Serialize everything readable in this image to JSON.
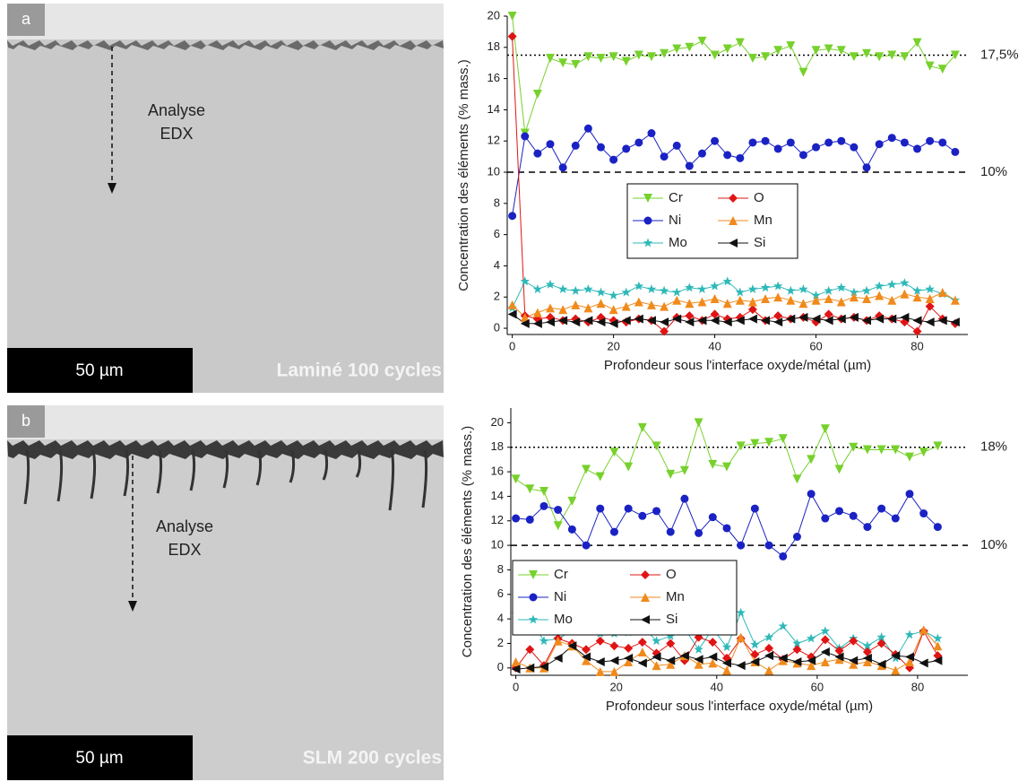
{
  "panels": [
    {
      "label": "a",
      "annotation": [
        "Analyse",
        "EDX"
      ],
      "scale": "50 µm",
      "caption": "Laminé 100 cycles"
    },
    {
      "label": "b",
      "annotation": [
        "Analyse",
        "EDX"
      ],
      "scale": "50 µm",
      "caption": "SLM 200 cycles"
    }
  ],
  "chart_data": [
    {
      "type": "line",
      "xlabel": "Profondeur sous l'interface oxyde/métal (µm)",
      "ylabel": "Concentration des éléments (% mass.)",
      "xlim": [
        -1,
        90
      ],
      "ylim": [
        -0.4,
        20
      ],
      "xticks": [
        0,
        20,
        40,
        60,
        80
      ],
      "yticks": [
        0,
        2,
        4,
        6,
        8,
        10,
        12,
        14,
        16,
        18,
        20
      ],
      "legend": "center",
      "reference_lines": [
        {
          "value": 17.5,
          "label": "17,5%",
          "style": "dotted"
        },
        {
          "value": 10,
          "label": "10%",
          "style": "dashed"
        }
      ],
      "x": [
        0,
        2.5,
        5,
        7.5,
        10,
        12.5,
        15,
        17.5,
        20,
        22.5,
        25,
        27.5,
        30,
        32.5,
        35,
        37.5,
        40,
        42.5,
        45,
        47.5,
        50,
        52.5,
        55,
        57.5,
        60,
        62.5,
        65,
        67.5,
        70,
        72.5,
        75,
        77.5,
        80,
        82.5,
        85,
        87.5
      ],
      "series": [
        {
          "name": "Cr",
          "color": "#77d12c",
          "marker": "tri-down",
          "values": [
            20,
            12.5,
            15,
            17.3,
            17,
            16.9,
            17.4,
            17.3,
            17.4,
            17.1,
            17.5,
            17.4,
            17.6,
            17.9,
            18,
            18.4,
            17.5,
            17.9,
            18.3,
            17.3,
            17.4,
            17.8,
            18.1,
            16.4,
            17.8,
            17.9,
            17.8,
            17.4,
            17.6,
            17.4,
            17.5,
            17.4,
            18.3,
            16.8,
            16.6,
            17.5
          ]
        },
        {
          "name": "Ni",
          "color": "#1a22c4",
          "marker": "circle",
          "values": [
            7.2,
            12.3,
            11.2,
            11.8,
            10.3,
            11.7,
            12.8,
            11.6,
            10.8,
            11.5,
            11.9,
            12.5,
            11,
            11.7,
            10.4,
            11.2,
            12,
            11.1,
            10.9,
            11.9,
            12,
            11.5,
            11.9,
            11.1,
            11.6,
            11.9,
            12,
            11.6,
            10.3,
            11.8,
            12.2,
            11.9,
            11.5,
            12,
            11.9,
            11.3
          ]
        },
        {
          "name": "Mo",
          "color": "#2fb8b8",
          "marker": "star",
          "values": [
            1.3,
            3,
            2.5,
            2.8,
            2.5,
            2.4,
            2.5,
            2.3,
            2.1,
            2.3,
            2.7,
            2.5,
            2.4,
            2.3,
            2.6,
            2.5,
            2.7,
            3,
            2.3,
            2.5,
            2.6,
            2.7,
            2.4,
            2.5,
            2.1,
            2.4,
            2.6,
            2.3,
            2.4,
            2.7,
            2.8,
            2.9,
            2.4,
            2.5,
            2.2,
            1.8
          ]
        },
        {
          "name": "O",
          "color": "#e01414",
          "marker": "diamond",
          "values": [
            18.7,
            0.8,
            0.6,
            0.7,
            0.5,
            0.6,
            0.4,
            0.7,
            0.5,
            0.4,
            0.6,
            0.5,
            -0.2,
            0.7,
            0.8,
            0.5,
            0.9,
            0.6,
            0.7,
            1.2,
            0.5,
            0.8,
            0.6,
            0.7,
            0.4,
            0.9,
            0.6,
            0.7,
            0.5,
            0.8,
            0.6,
            0.4,
            -0.2,
            1.4,
            0.6,
            0.3
          ]
        },
        {
          "name": "Mn",
          "color": "#f08a1c",
          "marker": "tri-up",
          "values": [
            1.5,
            0.7,
            1,
            1.3,
            1.2,
            1.5,
            1.3,
            1.6,
            1.2,
            1.4,
            1.7,
            1.5,
            1.4,
            1.8,
            1.6,
            1.7,
            1.9,
            1.6,
            1.8,
            1.7,
            1.9,
            2,
            1.8,
            1.6,
            1.8,
            1.9,
            1.7,
            2,
            1.9,
            2.1,
            1.8,
            2.2,
            2,
            1.9,
            2.3,
            1.8
          ]
        },
        {
          "name": "Si",
          "color": "#111111",
          "marker": "tri-left",
          "values": [
            0.9,
            0.3,
            0.3,
            0.4,
            0.5,
            0.4,
            0.5,
            0.4,
            0.3,
            0.5,
            0.6,
            0.5,
            0.4,
            0.6,
            0.4,
            0.5,
            0.5,
            0.4,
            0.5,
            0.6,
            0.5,
            0.4,
            0.6,
            0.7,
            0.6,
            0.5,
            0.6,
            0.7,
            0.5,
            0.6,
            0.6,
            0.7,
            0.5,
            0.4,
            0.5,
            0.4
          ]
        }
      ]
    },
    {
      "type": "line",
      "xlabel": "Profondeur sous l'interface oxyde/métal (µm)",
      "ylabel": "Concentration des éléments (% mass.)",
      "xlim": [
        -1,
        90
      ],
      "ylim": [
        -0.6,
        21.2
      ],
      "xticks": [
        0,
        20,
        40,
        60,
        80
      ],
      "yticks": [
        0,
        2,
        4,
        6,
        8,
        10,
        12,
        14,
        16,
        18,
        20
      ],
      "legend": "lower left",
      "reference_lines": [
        {
          "value": 18,
          "label": "18%",
          "style": "dotted"
        },
        {
          "value": 10,
          "label": "10%",
          "style": "dashed"
        }
      ],
      "x": [
        0,
        2.8,
        5.6,
        8.4,
        11.2,
        14,
        16.8,
        19.6,
        22.4,
        25.2,
        28,
        30.8,
        33.6,
        36.4,
        39.2,
        42,
        44.8,
        47.6,
        50.4,
        53.2,
        56,
        58.8,
        61.6,
        64.4,
        67.2,
        70,
        72.8,
        75.6,
        78.4,
        81.2,
        84
      ],
      "series": [
        {
          "name": "Cr",
          "color": "#77d12c",
          "marker": "tri-down",
          "values": [
            15.4,
            14.6,
            14.4,
            11.6,
            13.6,
            16.2,
            15.6,
            17.6,
            16.4,
            19.6,
            18.1,
            15.8,
            16.1,
            20,
            16.6,
            16.4,
            18.1,
            18.3,
            18.4,
            18.7,
            15.4,
            17,
            19.5,
            16.2,
            18,
            17.8,
            17.8,
            17.8,
            17.2,
            17.6,
            18.1
          ]
        },
        {
          "name": "Ni",
          "color": "#1a22c4",
          "marker": "circle",
          "values": [
            12.2,
            12.1,
            13.2,
            12.9,
            11.3,
            10,
            13,
            11.1,
            13,
            12.4,
            12.8,
            11.1,
            13.8,
            11,
            12.3,
            11.4,
            10,
            13,
            10,
            9.1,
            10.7,
            14.2,
            12.2,
            12.8,
            12.4,
            11.5,
            13,
            12.2,
            14.2,
            12.6,
            11.5
          ]
        },
        {
          "name": "Mo",
          "color": "#2fb8b8",
          "marker": "star",
          "values": [
            4.4,
            4,
            2.2,
            2.4,
            3,
            4,
            2.8,
            2.8,
            2.9,
            3.4,
            2.2,
            2.6,
            3.2,
            1.5,
            3.2,
            1.7,
            4.5,
            1.9,
            2.5,
            3.4,
            2,
            2.4,
            3,
            1.6,
            2.4,
            1.8,
            2.5,
            0.8,
            2.7,
            3,
            2.4
          ]
        },
        {
          "name": "O",
          "color": "#e01414",
          "marker": "diamond",
          "values": [
            0,
            1.5,
            0.2,
            2.4,
            2,
            1.5,
            2.2,
            1.8,
            1.6,
            2.1,
            1.2,
            2,
            0.6,
            2.5,
            2.1,
            0.8,
            2.4,
            1.1,
            1.6,
            0.7,
            1.5,
            0.9,
            2.3,
            1.4,
            2.2,
            1.3,
            2,
            1.1,
            0,
            3,
            1
          ]
        },
        {
          "name": "Mn",
          "color": "#f08a1c",
          "marker": "tri-up",
          "values": [
            0.5,
            0,
            0,
            2.2,
            1.8,
            0.6,
            -0.3,
            -0.3,
            0.5,
            1.3,
            0.2,
            0.3,
            1,
            0.3,
            0.4,
            -0.2,
            2.5,
            0.5,
            -0.2,
            0.6,
            0.4,
            0.2,
            0.5,
            0.7,
            0.3,
            0.5,
            0.2,
            -0.2,
            0.5,
            3.1,
            1.8
          ]
        },
        {
          "name": "Si",
          "color": "#111111",
          "marker": "tri-left",
          "values": [
            -0.1,
            0,
            0.1,
            0.8,
            1.8,
            0.9,
            0.5,
            0.6,
            0.8,
            0.4,
            0.9,
            0.6,
            1,
            0.7,
            0.9,
            0.4,
            0.2,
            0.5,
            1,
            0.8,
            0.5,
            0.6,
            1.3,
            0.9,
            0.6,
            0.8,
            0.3,
            1,
            0.9,
            0.4,
            0.6
          ]
        }
      ]
    }
  ]
}
